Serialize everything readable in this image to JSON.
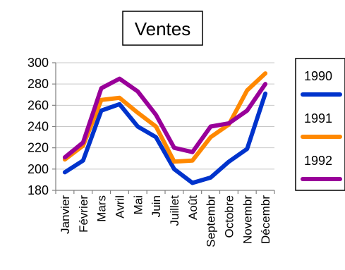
{
  "chart_data": {
    "type": "line",
    "title": "Ventes",
    "categories": [
      "Janvier",
      "Février",
      "Mars",
      "Avril",
      "Mai",
      "Juin",
      "Juillet",
      "Août",
      "Septembr",
      "Octobre",
      "Novembr",
      "Décembr"
    ],
    "ylim": [
      180,
      300
    ],
    "yticks": [
      180,
      200,
      220,
      240,
      260,
      280,
      300
    ],
    "grid": true,
    "legend_position": "right",
    "series": [
      {
        "name": "1990",
        "color": "#0033cc",
        "values": [
          197,
          208,
          255,
          261,
          240,
          230,
          200,
          187,
          192,
          207,
          219,
          271
        ]
      },
      {
        "name": "1991",
        "color": "#ff8800",
        "values": [
          209,
          222,
          265,
          267,
          253,
          240,
          207,
          208,
          230,
          242,
          274,
          290
        ]
      },
      {
        "name": "1992",
        "color": "#990099",
        "values": [
          211,
          225,
          276,
          285,
          273,
          251,
          220,
          216,
          240,
          243,
          255,
          280
        ]
      }
    ]
  }
}
